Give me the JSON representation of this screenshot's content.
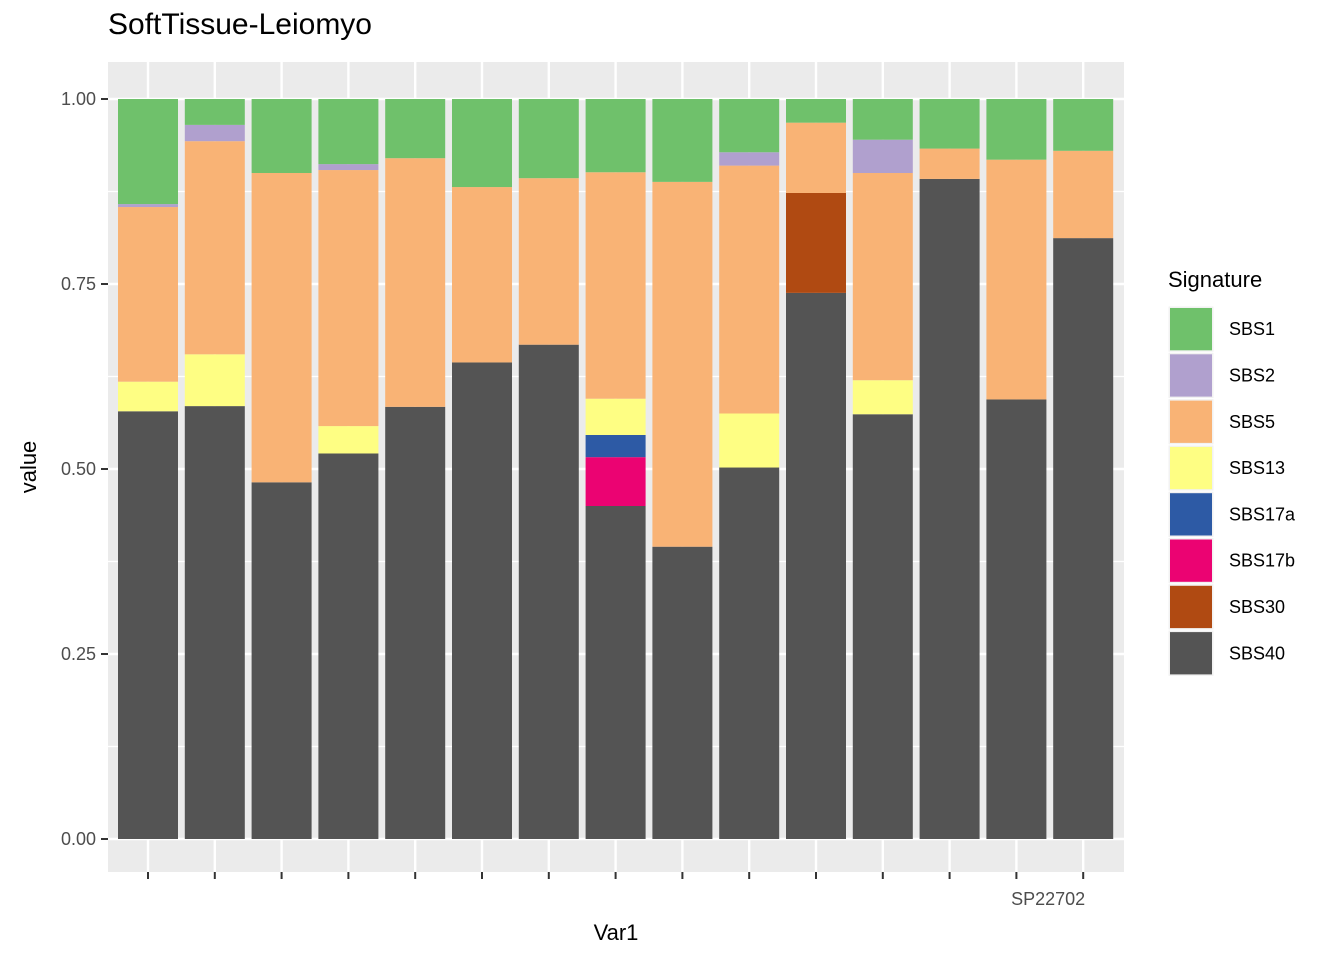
{
  "chart_data": {
    "type": "bar",
    "stacked": true,
    "title": "SoftTissue-Leiomyo",
    "xlabel": "Var1",
    "ylabel": "value",
    "ylim": [
      0,
      1
    ],
    "yticks": [
      "0.00",
      "0.25",
      "0.50",
      "0.75",
      "1.00"
    ],
    "grid": true,
    "x_tick_label_tail": "SP22702",
    "legend": {
      "title": "Signature",
      "position": "right"
    },
    "stack_order_bottom_to_top": [
      "SBS40",
      "SBS30",
      "SBS17b",
      "SBS17a",
      "SBS13",
      "SBS5",
      "SBS2",
      "SBS1"
    ],
    "series": [
      {
        "name": "SBS1",
        "color": "#6FC16B",
        "values": [
          0.142,
          0.035,
          0.1,
          0.088,
          0.08,
          0.119,
          0.107,
          0.099,
          0.112,
          0.072,
          0.032,
          0.055,
          0.067,
          0.082,
          0.07
        ]
      },
      {
        "name": "SBS2",
        "color": "#B0A0CE",
        "values": [
          0.004,
          0.022,
          0.0,
          0.008,
          0.0,
          0.0,
          0.0,
          0.0,
          0.0,
          0.018,
          0.0,
          0.045,
          0.0,
          0.0,
          0.0
        ]
      },
      {
        "name": "SBS5",
        "color": "#F9B375",
        "values": [
          0.236,
          0.288,
          0.418,
          0.346,
          0.336,
          0.237,
          0.225,
          0.306,
          0.493,
          0.335,
          0.095,
          0.28,
          0.041,
          0.324,
          0.118
        ]
      },
      {
        "name": "SBS13",
        "color": "#FEFE83",
        "values": [
          0.04,
          0.07,
          0.0,
          0.037,
          0.0,
          0.0,
          0.0,
          0.049,
          0.0,
          0.073,
          0.0,
          0.046,
          0.0,
          0.0,
          0.0
        ]
      },
      {
        "name": "SBS17a",
        "color": "#2D5AA5",
        "values": [
          0.0,
          0.0,
          0.0,
          0.0,
          0.0,
          0.0,
          0.0,
          0.03,
          0.0,
          0.0,
          0.0,
          0.0,
          0.0,
          0.0,
          0.0
        ]
      },
      {
        "name": "SBS17b",
        "color": "#EB0372",
        "values": [
          0.0,
          0.0,
          0.0,
          0.0,
          0.0,
          0.0,
          0.0,
          0.066,
          0.0,
          0.0,
          0.0,
          0.0,
          0.0,
          0.0,
          0.0
        ]
      },
      {
        "name": "SBS30",
        "color": "#B04A12",
        "values": [
          0.0,
          0.0,
          0.0,
          0.0,
          0.0,
          0.0,
          0.0,
          0.0,
          0.0,
          0.0,
          0.135,
          0.0,
          0.0,
          0.0,
          0.0
        ]
      },
      {
        "name": "SBS40",
        "color": "#545454",
        "values": [
          0.578,
          0.585,
          0.482,
          0.521,
          0.584,
          0.644,
          0.668,
          0.45,
          0.395,
          0.502,
          0.738,
          0.574,
          0.892,
          0.594,
          0.812
        ]
      }
    ]
  }
}
